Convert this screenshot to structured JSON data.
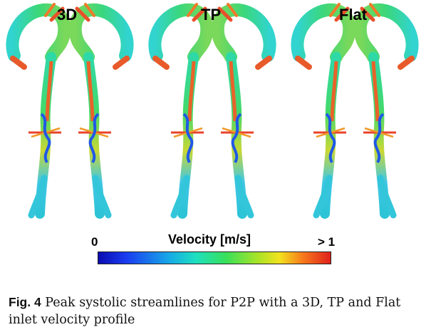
{
  "panels": [
    {
      "label": "3D"
    },
    {
      "label": "TP"
    },
    {
      "label": "Flat"
    }
  ],
  "legend": {
    "min": "0",
    "title": "Velocity [m/s]",
    "max": "> 1",
    "colors": [
      "#0a0cb0",
      "#1b3cf0",
      "#17a6e8",
      "#1ee0c0",
      "#38e05a",
      "#a4e32a",
      "#f2e21e",
      "#f77a1c",
      "#e0201c"
    ]
  },
  "caption": {
    "label": "Fig. 4",
    "text": "Peak systolic streamlines for P2P with a 3D, TP and Flat inlet velocity profile"
  }
}
